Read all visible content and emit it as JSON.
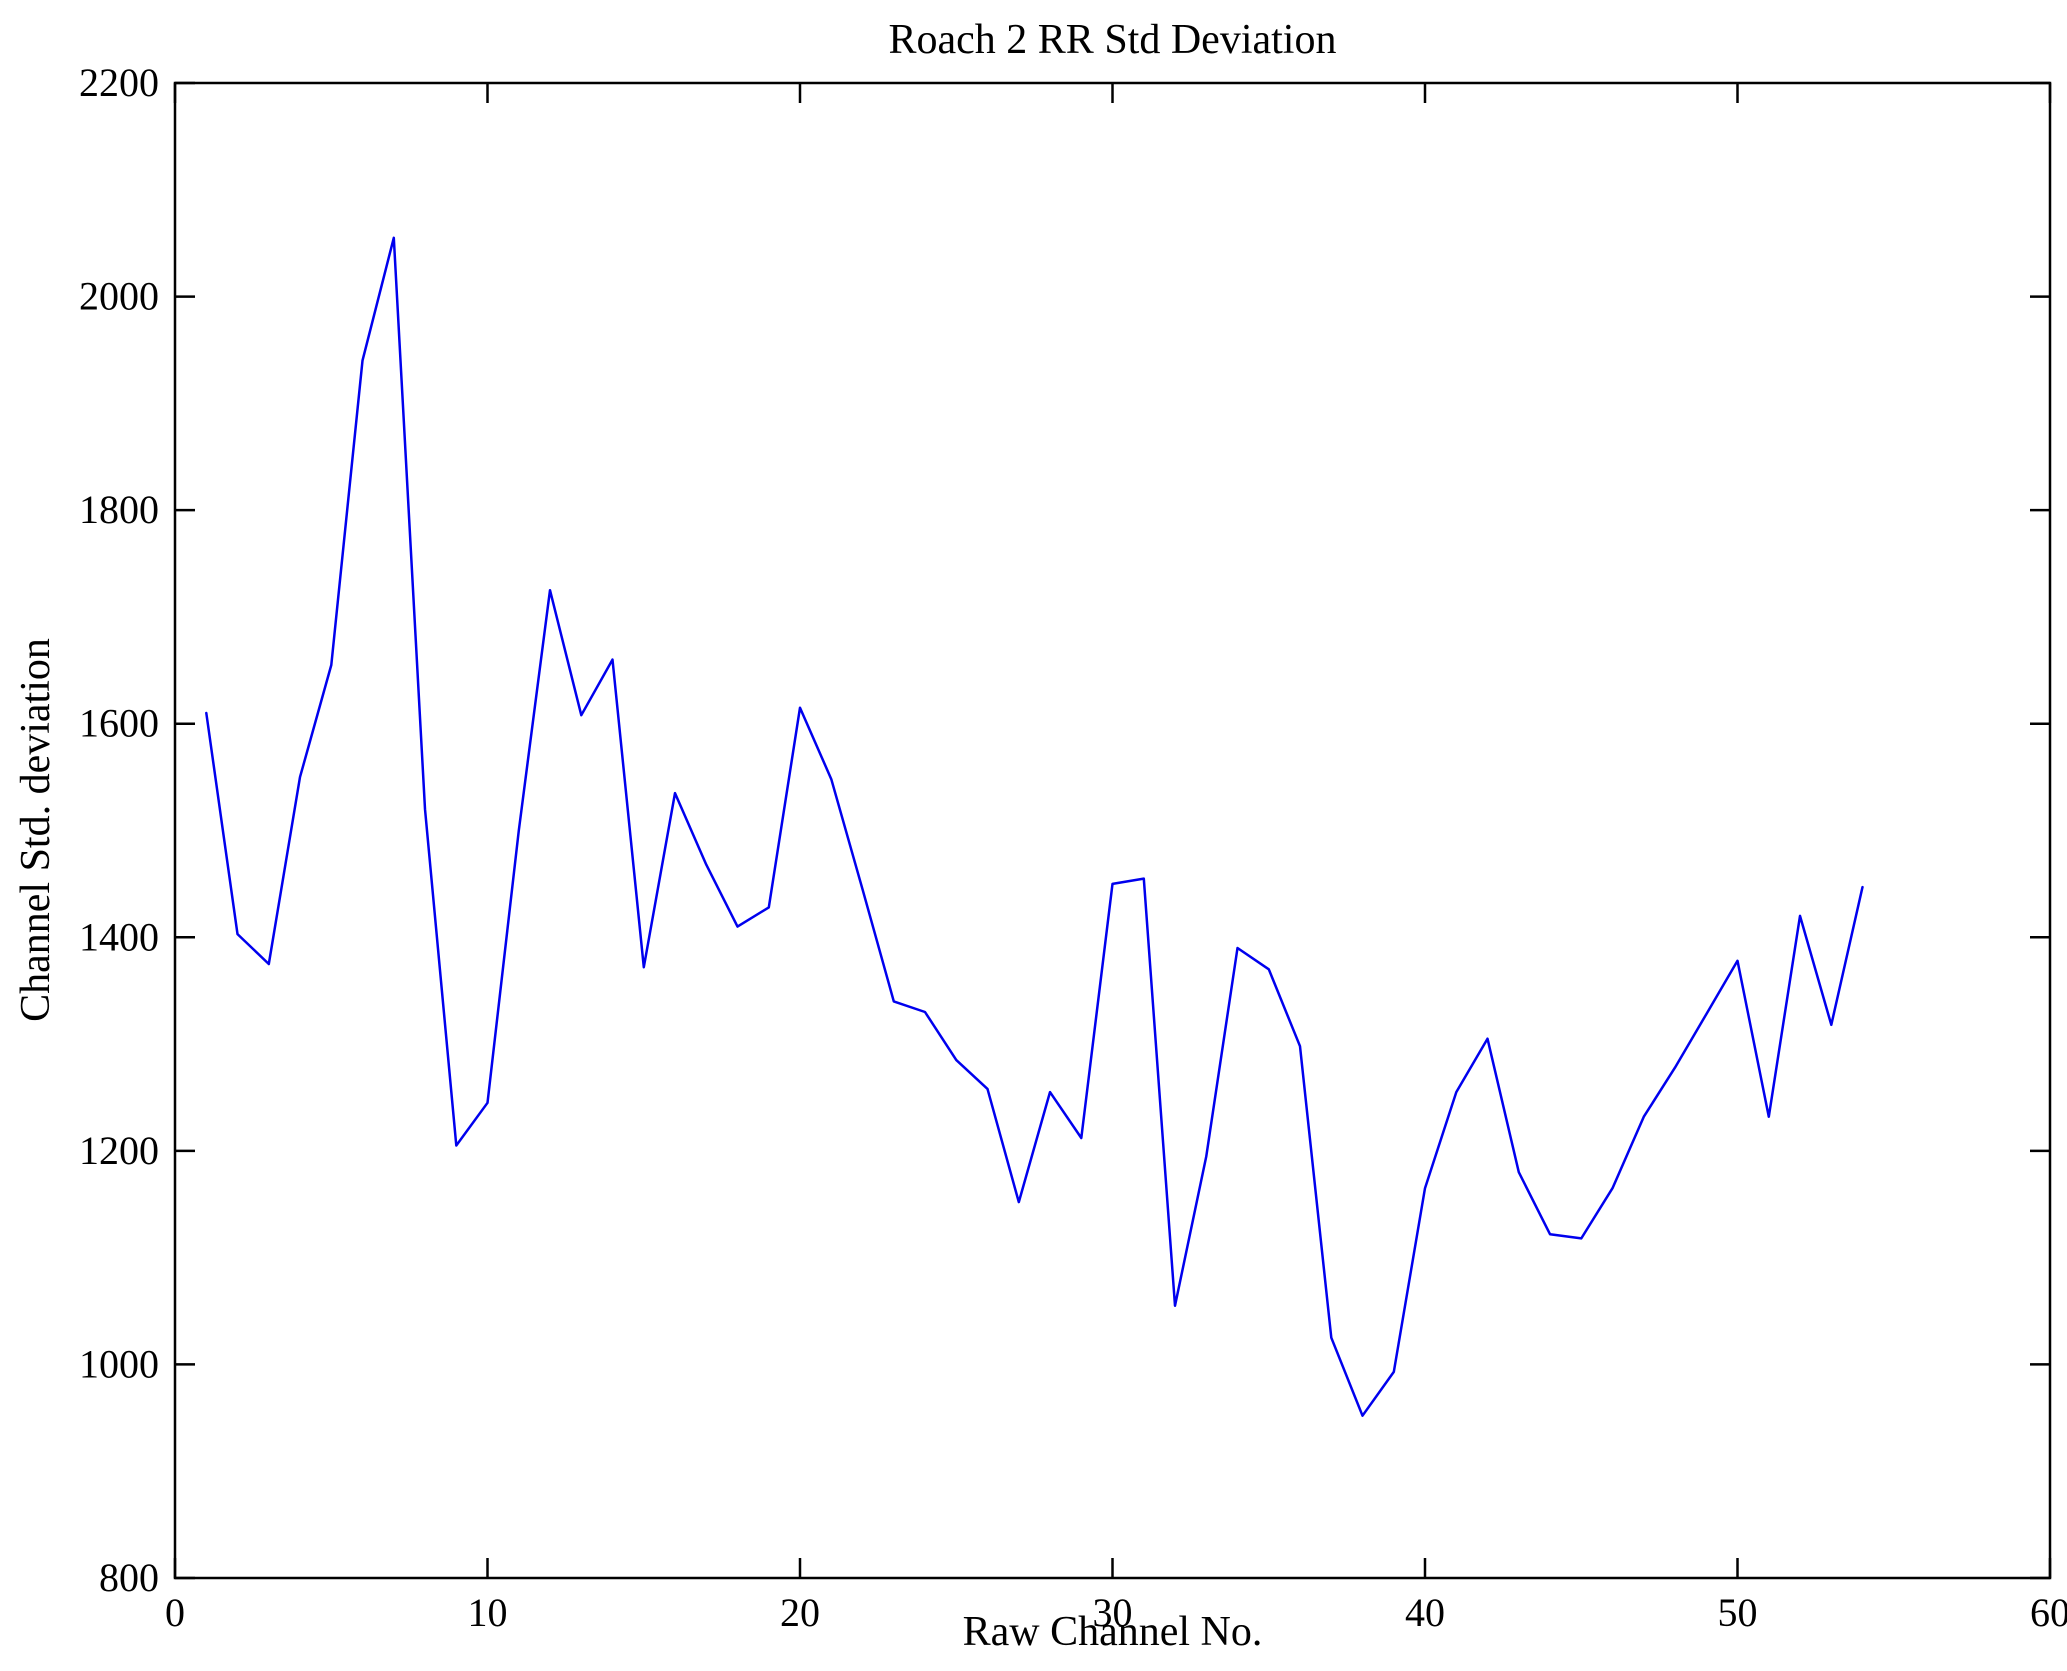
{
  "chart_data": {
    "type": "line",
    "title": "Roach 2 RR Std Deviation",
    "xlabel": "Raw Channel No.",
    "ylabel": "Channel Std. deviation",
    "xlim": [
      0,
      60
    ],
    "ylim": [
      800,
      2200
    ],
    "xticks": [
      0,
      10,
      20,
      30,
      40,
      50,
      60
    ],
    "yticks": [
      800,
      1000,
      1200,
      1400,
      1600,
      1800,
      2000,
      2200
    ],
    "grid": false,
    "legend": "none",
    "line_color": "#0000ee",
    "axis_color": "#000000",
    "x": [
      1,
      2,
      3,
      4,
      5,
      6,
      7,
      8,
      9,
      10,
      11,
      12,
      13,
      14,
      15,
      16,
      17,
      18,
      19,
      20,
      21,
      22,
      23,
      24,
      25,
      26,
      27,
      28,
      29,
      30,
      31,
      32,
      33,
      34,
      35,
      36,
      37,
      38,
      39,
      40,
      41,
      42,
      43,
      44,
      45,
      46,
      47,
      48,
      49,
      50,
      51,
      52,
      53,
      54
    ],
    "y": [
      1610,
      1403,
      1375,
      1550,
      1655,
      1940,
      2055,
      1520,
      1205,
      1245,
      1500,
      1725,
      1608,
      1660,
      1372,
      1535,
      1468,
      1410,
      1428,
      1615,
      1548,
      1445,
      1340,
      1330,
      1285,
      1258,
      1152,
      1255,
      1212,
      1450,
      1455,
      1055,
      1195,
      1390,
      1370,
      1298,
      1025,
      952,
      993,
      1165,
      1255,
      1305,
      1180,
      1122,
      1118,
      1165,
      1232,
      1278,
      1328,
      1378,
      1232,
      1420,
      1318,
      1447
    ]
  }
}
